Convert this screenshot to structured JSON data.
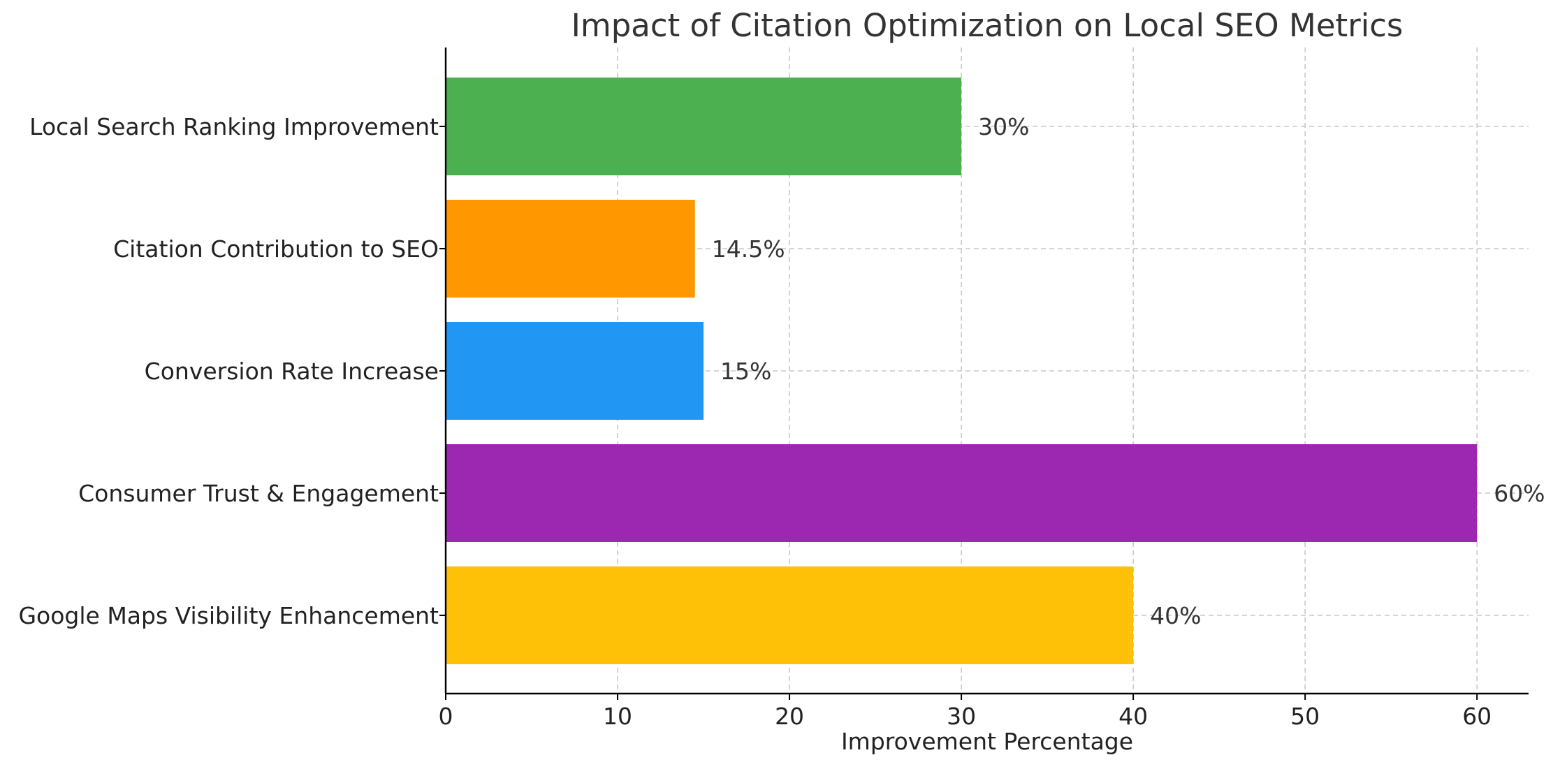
{
  "chart_data": {
    "type": "bar",
    "orientation": "horizontal",
    "title": "Impact of Citation Optimization on Local SEO Metrics",
    "xlabel": "Improvement Percentage",
    "ylabel": "",
    "xlim": [
      0,
      63
    ],
    "x_ticks": [
      0,
      10,
      20,
      30,
      40,
      50,
      60
    ],
    "x_tick_labels": [
      "0",
      "10",
      "20",
      "30",
      "40",
      "50",
      "60"
    ],
    "grid": true,
    "legend": "none",
    "categories": [
      "Local Search Ranking Improvement",
      "Citation Contribution to SEO",
      "Conversion Rate Increase",
      "Consumer Trust & Engagement",
      "Google Maps Visibility Enhancement"
    ],
    "values": [
      30,
      14.5,
      15,
      60,
      40
    ],
    "value_labels": [
      "30%",
      "14.5%",
      "15%",
      "60%",
      "40%"
    ],
    "colors": [
      "#4caf50",
      "#ff9800",
      "#2196f3",
      "#9c27b0",
      "#ffc107"
    ]
  }
}
